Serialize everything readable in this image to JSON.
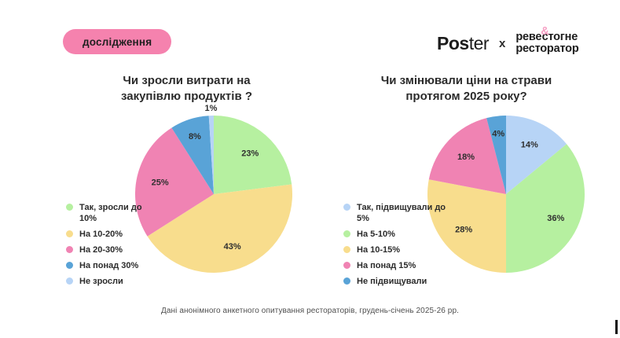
{
  "badge": {
    "label": "дослідження"
  },
  "logo": {
    "poster_bold": "Pos",
    "poster_rest": "ter",
    "separator": "x",
    "brand_line1_pre": "реве",
    "brand_amp": "&",
    "brand_line1_post": "стогне",
    "brand_line2": "ресторатор"
  },
  "colors": {
    "badge_pink": "#f582ae",
    "amp_pink": "#f6a0c4",
    "green": "#b6f0a0",
    "yellow": "#f8dd8d",
    "pink": "#f083b3",
    "blue": "#59a3d7",
    "light_blue": "#b7d4f6",
    "text_dark": "#2b2b2b",
    "footer_gray": "#4f4f4f"
  },
  "chart_data": [
    {
      "type": "pie",
      "title": "Чи зросли витрати на закупівлю продуктів ?",
      "categories": [
        "Так, зросли до 10%",
        "На 10-20%",
        "На 20-30%",
        "На понад 30%",
        "Не зросли"
      ],
      "values": [
        23,
        43,
        25,
        8,
        1
      ],
      "value_labels": [
        "23%",
        "43%",
        "25%",
        "8%",
        "1%"
      ],
      "slice_colors": [
        "#b6f0a0",
        "#f8dd8d",
        "#f083b3",
        "#59a3d7",
        "#b7d4f6"
      ],
      "legend_position": "left",
      "start_angle_deg": 0,
      "direction": "clockwise"
    },
    {
      "type": "pie",
      "title": "Чи змінювали ціни на страви протягом 2025 року?",
      "categories": [
        "Так, підвищували до 5%",
        "На 5-10%",
        "На 10-15%",
        "На понад 15%",
        "Не підвищували"
      ],
      "values": [
        14,
        36,
        28,
        18,
        4
      ],
      "value_labels": [
        "14%",
        "36%",
        "28%",
        "18%",
        "4%"
      ],
      "slice_colors": [
        "#b7d4f6",
        "#b6f0a0",
        "#f8dd8d",
        "#f083b3",
        "#59a3d7"
      ],
      "legend_position": "left",
      "start_angle_deg": 0,
      "direction": "clockwise"
    }
  ],
  "footer": {
    "caption": "Дані анонімного анкетного опитування рестораторів, грудень-січень 2025-26 рр."
  }
}
